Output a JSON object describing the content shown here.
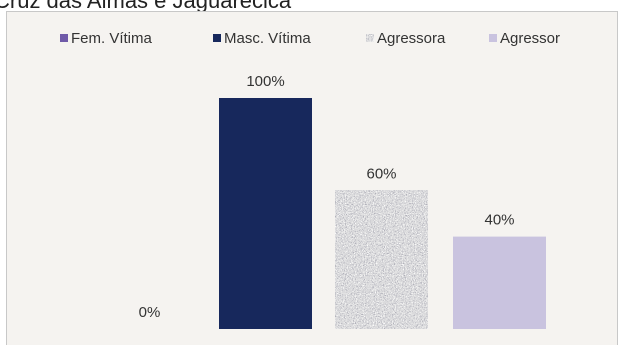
{
  "header": {
    "title": "Cruz das Almas e Jaguarecica"
  },
  "chart_data": {
    "type": "bar",
    "categories": [
      "Fem. Vítima",
      "Masc. Vítima",
      "Agressora",
      "Agressor"
    ],
    "values": [
      0,
      100,
      60,
      40
    ],
    "data_labels": [
      "0%",
      "100%",
      "60%",
      "40%"
    ],
    "ylim": [
      0,
      100
    ],
    "grid": false,
    "legend_position": "top",
    "series": [
      {
        "name": "Fem. Vítima",
        "color": "#6f5aa8"
      },
      {
        "name": "Masc. Vítima",
        "color": "#17285c"
      },
      {
        "name": "Agressora",
        "color": "#b0b0b0",
        "pattern": "speckled"
      },
      {
        "name": "Agressor",
        "color": "#c9c3df"
      }
    ]
  }
}
